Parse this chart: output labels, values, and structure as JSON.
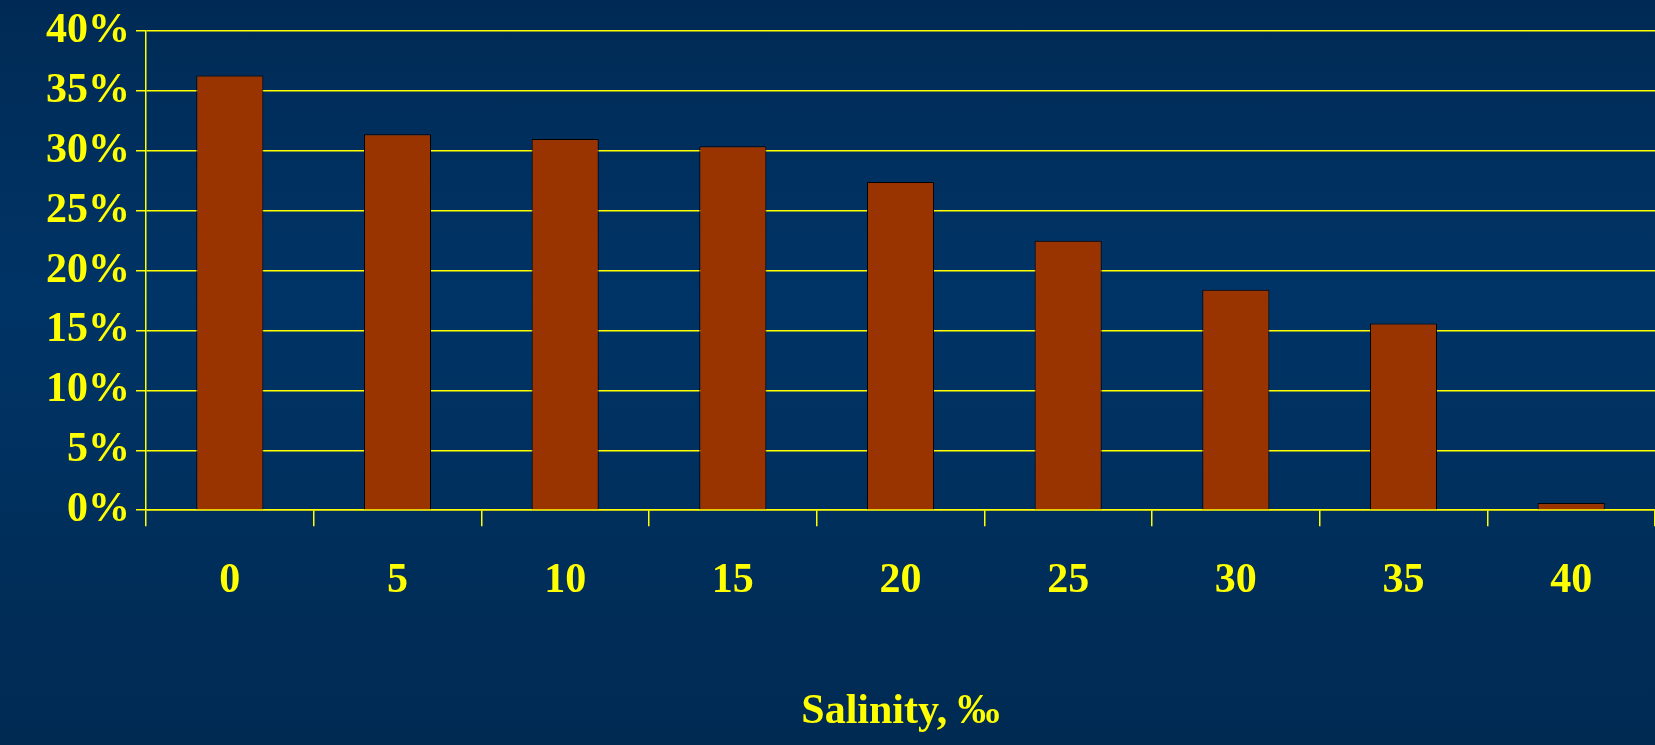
{
  "chart_data": {
    "type": "bar",
    "xlabel": "Salinity, ‰",
    "categories": [
      "0",
      "5",
      "10",
      "15",
      "20",
      "25",
      "30",
      "35",
      "40"
    ],
    "values": [
      36.3,
      31.4,
      31.0,
      30.4,
      27.4,
      22.5,
      18.4,
      15.6,
      0.6
    ],
    "color": "#993300",
    "ylim": [
      0,
      40
    ],
    "yticks": [
      {
        "value": 0,
        "label": "0%"
      },
      {
        "value": 5,
        "label": "5%"
      },
      {
        "value": 10,
        "label": "10%"
      },
      {
        "value": 15,
        "label": "15%"
      },
      {
        "value": 20,
        "label": "20%"
      },
      {
        "value": 25,
        "label": "25%"
      },
      {
        "value": 30,
        "label": "30%"
      },
      {
        "value": 35,
        "label": "35%"
      },
      {
        "value": 40,
        "label": "40%"
      }
    ],
    "grid": "y"
  }
}
